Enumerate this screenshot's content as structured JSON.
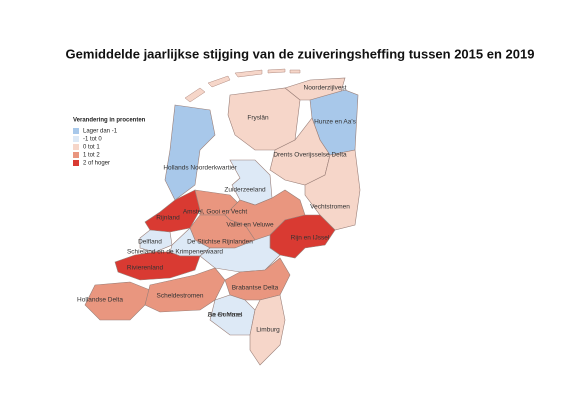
{
  "title": "Gemiddelde jaarlijkse stijging van de zuiveringsheffing tussen 2015 en 2019",
  "legend": {
    "title": "Verandering in procenten",
    "items": [
      {
        "label": "Lager dan -1",
        "color": "#a8c8ea"
      },
      {
        "label": "-1 tot 0",
        "color": "#dde9f6"
      },
      {
        "label": "0 tot 1",
        "color": "#f6d6c9"
      },
      {
        "label": "1 tot 2",
        "color": "#e9967f"
      },
      {
        "label": "2 of hoger",
        "color": "#d93a32"
      }
    ]
  },
  "regions": [
    {
      "name": "Noorderzijlvest",
      "color": "#f6d6c9"
    },
    {
      "name": "Fryslân",
      "color": "#f6d6c9"
    },
    {
      "name": "Hunze en Aa's",
      "color": "#a8c8ea"
    },
    {
      "name": "Drents Overijsselse Delta",
      "color": "#f6d6c9"
    },
    {
      "name": "Vechtstromen",
      "color": "#f6d6c9"
    },
    {
      "name": "Hollands Noorderkwartier",
      "color": "#a8c8ea"
    },
    {
      "name": "Zuiderzeeland",
      "color": "#dde9f6"
    },
    {
      "name": "Rijnland",
      "color": "#d93a32"
    },
    {
      "name": "Amstel, Gooi en Vecht",
      "color": "#e9967f"
    },
    {
      "name": "Vallei en Veluwe",
      "color": "#e9967f"
    },
    {
      "name": "Rijn en IJssel",
      "color": "#d93a32"
    },
    {
      "name": "De Stichtse Rijnlanden",
      "color": "#e9967f"
    },
    {
      "name": "Delfland",
      "color": "#dde9f6"
    },
    {
      "name": "Schieland en de Krimpenerwaard",
      "color": "#dde9f6"
    },
    {
      "name": "Rivierenland",
      "color": "#dde9f6"
    },
    {
      "name": "Hollandse Delta",
      "color": "#d93a32"
    },
    {
      "name": "Scheldestromen",
      "color": "#e9967f"
    },
    {
      "name": "Brabantse Delta",
      "color": "#e9967f"
    },
    {
      "name": "Aa en Maas",
      "color": "#e9967f"
    },
    {
      "name": "De Dommel",
      "color": "#dde9f6"
    },
    {
      "name": "Limburg",
      "color": "#f6d6c9"
    }
  ]
}
